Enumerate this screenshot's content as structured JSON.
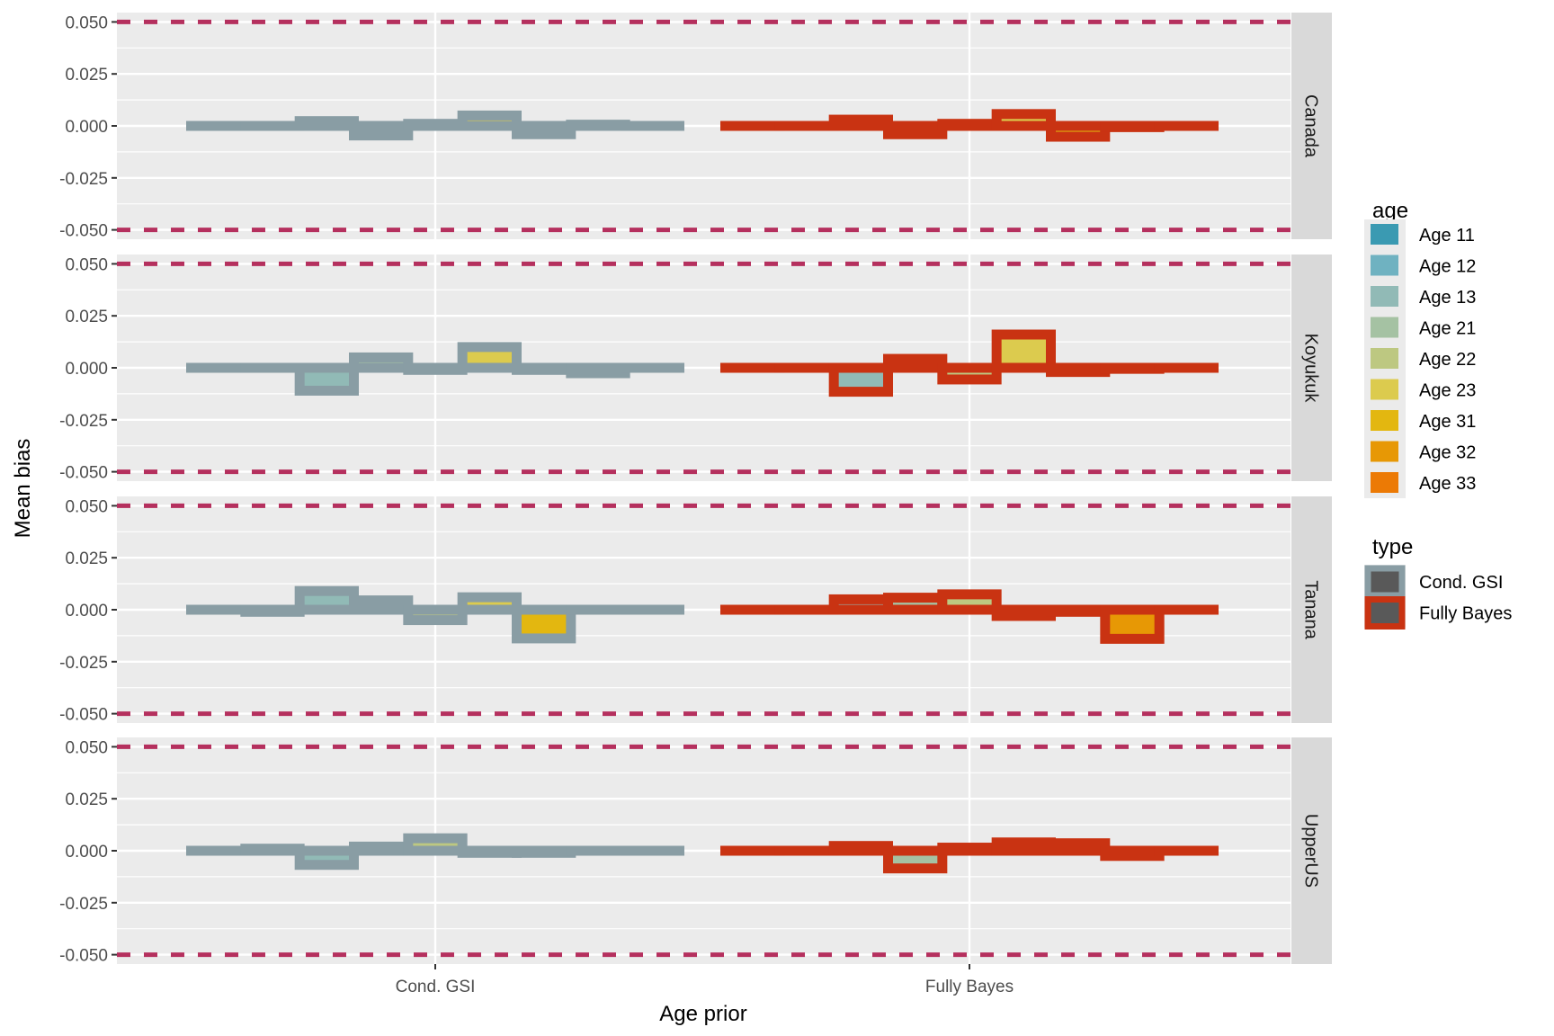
{
  "chart_data": {
    "type": "bar",
    "title": "",
    "xlabel": "Age prior",
    "ylabel": "Mean bias",
    "ylim": [
      -0.0545,
      0.0545
    ],
    "yticks": [
      "0.050",
      "0.025",
      "0.000",
      "-0.025",
      "-0.050"
    ],
    "ytick_values": [
      0.05,
      0.025,
      0,
      -0.025,
      -0.05
    ],
    "reference_lines": [
      0.05,
      -0.05
    ],
    "reference_color": "#B5305E",
    "grid": true,
    "categories": [
      "Cond. GSI",
      "Fully Bayes"
    ],
    "facets": [
      "Canada",
      "Koyukuk",
      "Tanana",
      "UpperUS"
    ],
    "ages": [
      "Age 11",
      "Age 12",
      "Age 13",
      "Age 21",
      "Age 22",
      "Age 23",
      "Age 31",
      "Age 32",
      "Age 33"
    ],
    "age_colors": [
      "#3A9AB2",
      "#6FB2C1",
      "#91BAB6",
      "#A5C2A3",
      "#BDC881",
      "#DCCB4E",
      "#E3B710",
      "#E79805",
      "#EC7A05"
    ],
    "types": [
      "Cond. GSI",
      "Fully Bayes"
    ],
    "type_colors": [
      "#899DA4",
      "#C93312"
    ],
    "legend_age_title": "age",
    "legend_type_title": "type",
    "legend_placement": "right",
    "values": {
      "Canada": {
        "Cond. GSI": [
          0,
          0,
          0.0023,
          -0.0046,
          0.001,
          0.005,
          -0.004,
          0.0006,
          0
        ],
        "Fully Bayes": [
          0,
          0,
          0.003,
          -0.004,
          0.001,
          0.0057,
          -0.0052,
          -0.0006,
          0
        ]
      },
      "Koyukuk": {
        "Cond. GSI": [
          0,
          0,
          -0.011,
          0.005,
          -0.001,
          0.01,
          -0.001,
          -0.0026,
          0
        ],
        "Fully Bayes": [
          0,
          0,
          -0.0115,
          0.0043,
          -0.0056,
          0.016,
          -0.002,
          -0.0005,
          0
        ]
      },
      "Tanana": {
        "Cond. GSI": [
          0,
          -0.001,
          0.009,
          0.0045,
          -0.005,
          0.006,
          -0.0138,
          0,
          0
        ],
        "Fully Bayes": [
          0,
          0,
          0.005,
          0.0058,
          0.0074,
          -0.003,
          -0.001,
          -0.014,
          0
        ]
      },
      "UpperUS": {
        "Cond. GSI": [
          0,
          0.001,
          -0.0068,
          0.002,
          0.006,
          -0.001,
          -0.001,
          0,
          0
        ],
        "Fully Bayes": [
          0,
          0,
          0.0023,
          -0.0085,
          0.0015,
          0.004,
          0.0036,
          -0.0025,
          0
        ]
      }
    }
  }
}
